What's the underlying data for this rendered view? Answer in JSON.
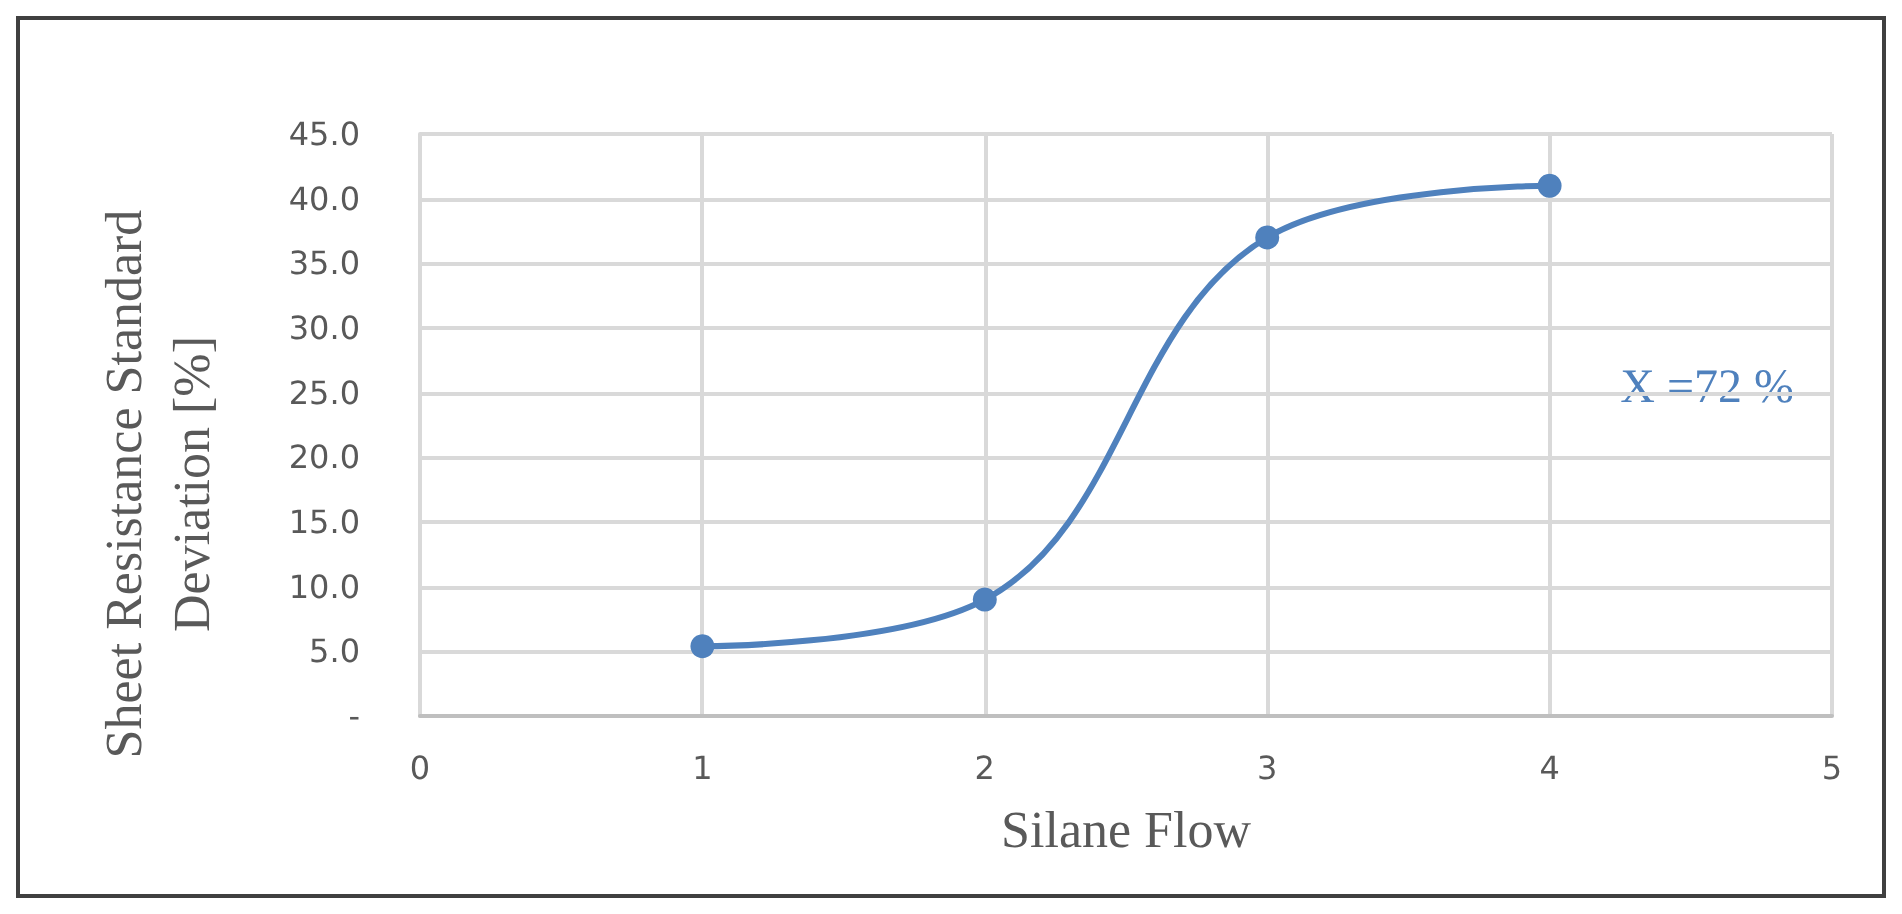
{
  "chart_data": {
    "type": "line",
    "xlabel": "Silane Flow",
    "ylabel": "Sheet Resistance Standard\nDeviation [%]",
    "x": [
      1,
      2,
      3,
      4
    ],
    "series": [
      {
        "color": "#4f81bd",
        "values": [
          5.4,
          9.0,
          37.0,
          41.0
        ]
      }
    ],
    "xlim": [
      0,
      5
    ],
    "xticks": [
      0,
      1,
      2,
      3,
      4,
      5
    ],
    "ylim": [
      0,
      45
    ],
    "yticks": [
      {
        "value": 0,
        "label": "-"
      },
      {
        "value": 5,
        "label": "5.0"
      },
      {
        "value": 10,
        "label": "10.0"
      },
      {
        "value": 15,
        "label": "15.0"
      },
      {
        "value": 20,
        "label": "20.0"
      },
      {
        "value": 25,
        "label": "25.0"
      },
      {
        "value": 30,
        "label": "30.0"
      },
      {
        "value": 35,
        "label": "35.0"
      },
      {
        "value": 40,
        "label": "40.0"
      },
      {
        "value": 45,
        "label": "45.0"
      }
    ],
    "annotations": [
      "X =72 %"
    ],
    "grid": true,
    "marker": "circle"
  }
}
